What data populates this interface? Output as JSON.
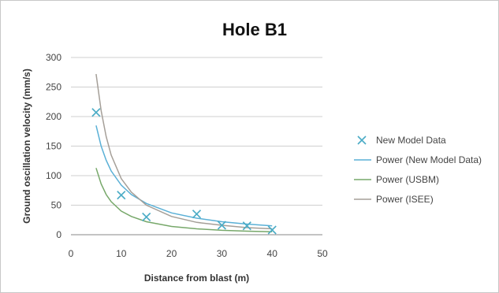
{
  "chart_data": {
    "type": "scatter",
    "title": "Hole B1",
    "xlabel": "Distance from blast (m)",
    "ylabel": "Ground oscillation velocity (mm/s)",
    "xlim": [
      0,
      50
    ],
    "ylim": [
      0,
      300
    ],
    "xticks": [
      0,
      10,
      20,
      30,
      40,
      50
    ],
    "yticks": [
      0,
      50,
      100,
      150,
      200,
      250,
      300
    ],
    "grid": "horizontal",
    "legend_position": "right",
    "series": [
      {
        "name": "New Model Data",
        "kind": "markers",
        "marker": "x",
        "color": "#4bacc6",
        "x": [
          5,
          10,
          15,
          25,
          30,
          35,
          40
        ],
        "y": [
          207,
          67,
          30,
          35,
          16,
          15,
          8
        ]
      },
      {
        "name": "Power (New Model Data)",
        "kind": "line",
        "color": "#5ab0d6",
        "x": [
          5,
          6,
          7,
          8,
          10,
          12,
          15,
          20,
          25,
          30,
          35,
          40
        ],
        "y": [
          185,
          150,
          126,
          108,
          84,
          68,
          53,
          37,
          28,
          22,
          18,
          15
        ]
      },
      {
        "name": "Power (USBM)",
        "kind": "line",
        "color": "#77a86a",
        "x": [
          5,
          6,
          7,
          8,
          10,
          12,
          15,
          20,
          25,
          30,
          35,
          40
        ],
        "y": [
          113,
          86,
          68,
          56,
          40,
          31,
          22,
          14,
          10,
          7.5,
          6,
          5
        ]
      },
      {
        "name": "Power (ISEE)",
        "kind": "line",
        "color": "#a59f98",
        "x": [
          5,
          6,
          7,
          8,
          10,
          12,
          15,
          20,
          25,
          30,
          35,
          40
        ],
        "y": [
          272,
          210,
          166,
          135,
          95,
          72,
          50,
          31,
          21,
          16,
          12,
          10
        ]
      }
    ]
  }
}
